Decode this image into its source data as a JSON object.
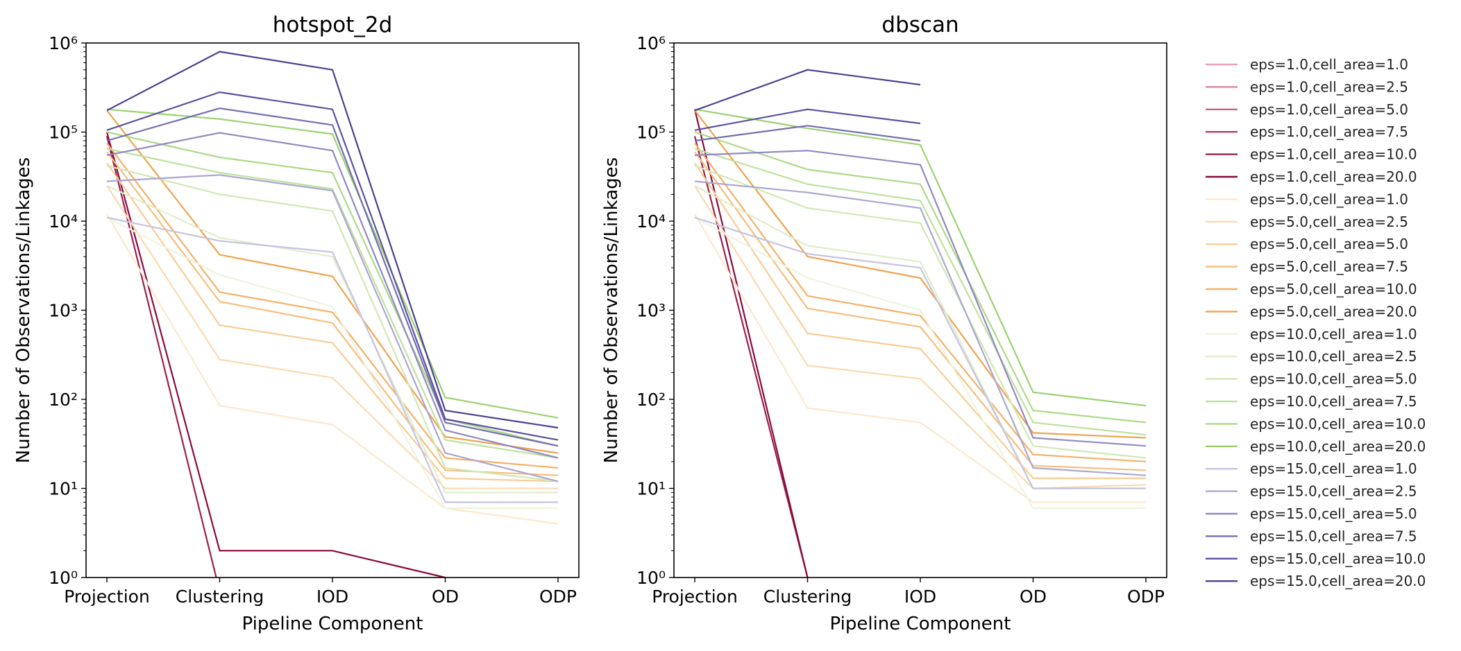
{
  "figure": {
    "legend_position": "right"
  },
  "chart_data": [
    {
      "type": "line",
      "title": "hotspot_2d",
      "xlabel": "Pipeline Component",
      "ylabel": "Number of Observations/Linkages",
      "yscale": "log",
      "ylim": [
        1,
        1000000
      ],
      "yticks": [
        1,
        10,
        100,
        1000,
        10000,
        100000,
        1000000
      ],
      "categories": [
        "Projection",
        "Clustering",
        "IOD",
        "OD",
        "ODP"
      ],
      "grid": false,
      "series": [
        {
          "name": "eps=1.0,cell_area=1.0",
          "color": "#e7a3b5",
          "values": [
            0,
            null,
            null,
            null,
            null
          ]
        },
        {
          "name": "eps=1.0,cell_area=2.5",
          "color": "#d9829c",
          "values": [
            0,
            null,
            null,
            null,
            null
          ]
        },
        {
          "name": "eps=1.0,cell_area=5.0",
          "color": "#c9617f",
          "values": [
            0,
            null,
            null,
            null,
            null
          ]
        },
        {
          "name": "eps=1.0,cell_area=7.5",
          "color": "#b13f65",
          "values": [
            0,
            null,
            null,
            null,
            null
          ]
        },
        {
          "name": "eps=1.0,cell_area=10.0",
          "color": "#9a1f4c",
          "values": [
            90000,
            0,
            null,
            null,
            null
          ]
        },
        {
          "name": "eps=1.0,cell_area=20.0",
          "color": "#88093d",
          "values": [
            100000,
            2,
            2,
            1,
            null
          ]
        },
        {
          "name": "eps=5.0,cell_area=1.0",
          "color": "#fde8cc",
          "values": [
            12000,
            85,
            52,
            6,
            4
          ]
        },
        {
          "name": "eps=5.0,cell_area=2.5",
          "color": "#fbdab0",
          "values": [
            25000,
            280,
            175,
            10,
            10
          ]
        },
        {
          "name": "eps=5.0,cell_area=5.0",
          "color": "#f9cc95",
          "values": [
            45000,
            680,
            430,
            13,
            12
          ]
        },
        {
          "name": "eps=5.0,cell_area=7.5",
          "color": "#f7be7c",
          "values": [
            60000,
            1250,
            720,
            16,
            14
          ]
        },
        {
          "name": "eps=5.0,cell_area=10.0",
          "color": "#f4b067",
          "values": [
            75000,
            1600,
            950,
            22,
            17
          ]
        },
        {
          "name": "eps=5.0,cell_area=20.0",
          "color": "#f1a24f",
          "values": [
            175000,
            4200,
            2400,
            38,
            25
          ]
        },
        {
          "name": "eps=10.0,cell_area=1.0",
          "color": "#edf4df",
          "values": [
            11000,
            2500,
            1100,
            6,
            6
          ]
        },
        {
          "name": "eps=10.0,cell_area=2.5",
          "color": "#e0eecb",
          "values": [
            25000,
            6500,
            4000,
            9,
            9
          ]
        },
        {
          "name": "eps=10.0,cell_area=5.0",
          "color": "#d0e8b4",
          "values": [
            42000,
            20000,
            13000,
            17,
            12
          ]
        },
        {
          "name": "eps=10.0,cell_area=7.5",
          "color": "#bfe19d",
          "values": [
            65000,
            35000,
            23000,
            35,
            22
          ]
        },
        {
          "name": "eps=10.0,cell_area=10.0",
          "color": "#acd986",
          "values": [
            100000,
            52000,
            35000,
            60,
            30
          ]
        },
        {
          "name": "eps=10.0,cell_area=20.0",
          "color": "#9ad16f",
          "values": [
            180000,
            140000,
            95000,
            105,
            62
          ]
        },
        {
          "name": "eps=15.0,cell_area=1.0",
          "color": "#c6c3e0",
          "values": [
            11000,
            6000,
            4500,
            7,
            7
          ]
        },
        {
          "name": "eps=15.0,cell_area=2.5",
          "color": "#aaa6d1",
          "values": [
            28000,
            33000,
            22000,
            25,
            12
          ]
        },
        {
          "name": "eps=15.0,cell_area=5.0",
          "color": "#8f89c1",
          "values": [
            55000,
            98000,
            62000,
            45,
            22
          ]
        },
        {
          "name": "eps=15.0,cell_area=7.5",
          "color": "#746db0",
          "values": [
            80000,
            185000,
            120000,
            55,
            30
          ]
        },
        {
          "name": "eps=15.0,cell_area=10.0",
          "color": "#5a519f",
          "values": [
            105000,
            280000,
            180000,
            60,
            35
          ]
        },
        {
          "name": "eps=15.0,cell_area=20.0",
          "color": "#4a3f90",
          "values": [
            175000,
            800000,
            500000,
            75,
            48
          ]
        }
      ]
    },
    {
      "type": "line",
      "title": "dbscan",
      "xlabel": "Pipeline Component",
      "ylabel": "Number of Observations/Linkages",
      "yscale": "log",
      "ylim": [
        1,
        1000000
      ],
      "yticks": [
        1,
        10,
        100,
        1000,
        10000,
        100000,
        1000000
      ],
      "categories": [
        "Projection",
        "Clustering",
        "IOD",
        "OD",
        "ODP"
      ],
      "grid": false,
      "series": [
        {
          "name": "eps=1.0,cell_area=1.0",
          "color": "#e7a3b5",
          "values": [
            0,
            null,
            null,
            null,
            null
          ]
        },
        {
          "name": "eps=1.0,cell_area=2.5",
          "color": "#d9829c",
          "values": [
            0,
            null,
            null,
            null,
            null
          ]
        },
        {
          "name": "eps=1.0,cell_area=5.0",
          "color": "#c9617f",
          "values": [
            0,
            null,
            null,
            null,
            null
          ]
        },
        {
          "name": "eps=1.0,cell_area=7.5",
          "color": "#b13f65",
          "values": [
            0,
            null,
            null,
            null,
            null
          ]
        },
        {
          "name": "eps=1.0,cell_area=10.0",
          "color": "#9a1f4c",
          "values": [
            90000,
            1,
            null,
            null,
            null
          ]
        },
        {
          "name": "eps=1.0,cell_area=20.0",
          "color": "#88093d",
          "values": [
            180000,
            1,
            null,
            null,
            null
          ]
        },
        {
          "name": "eps=5.0,cell_area=1.0",
          "color": "#fde8cc",
          "values": [
            12000,
            80,
            55,
            7,
            7
          ]
        },
        {
          "name": "eps=5.0,cell_area=2.5",
          "color": "#fbdab0",
          "values": [
            25000,
            240,
            170,
            10,
            11
          ]
        },
        {
          "name": "eps=5.0,cell_area=5.0",
          "color": "#f9cc95",
          "values": [
            45000,
            550,
            370,
            13,
            13
          ]
        },
        {
          "name": "eps=5.0,cell_area=7.5",
          "color": "#f7be7c",
          "values": [
            60000,
            1050,
            650,
            18,
            16
          ]
        },
        {
          "name": "eps=5.0,cell_area=10.0",
          "color": "#f4b067",
          "values": [
            75000,
            1450,
            870,
            24,
            20
          ]
        },
        {
          "name": "eps=5.0,cell_area=20.0",
          "color": "#f1a24f",
          "values": [
            175000,
            4000,
            2300,
            42,
            37
          ]
        },
        {
          "name": "eps=10.0,cell_area=1.0",
          "color": "#edf4df",
          "values": [
            11000,
            2300,
            1000,
            6,
            6
          ]
        },
        {
          "name": "eps=10.0,cell_area=2.5",
          "color": "#e0eecb",
          "values": [
            25000,
            5300,
            3500,
            10,
            10
          ]
        },
        {
          "name": "eps=10.0,cell_area=5.0",
          "color": "#d0e8b4",
          "values": [
            42000,
            14000,
            9500,
            30,
            22
          ]
        },
        {
          "name": "eps=10.0,cell_area=7.5",
          "color": "#bfe19d",
          "values": [
            65000,
            26000,
            17000,
            55,
            40
          ]
        },
        {
          "name": "eps=10.0,cell_area=10.0",
          "color": "#acd986",
          "values": [
            100000,
            38000,
            26000,
            75,
            55
          ]
        },
        {
          "name": "eps=10.0,cell_area=20.0",
          "color": "#9ad16f",
          "values": [
            180000,
            110000,
            72000,
            120,
            85
          ]
        },
        {
          "name": "eps=15.0,cell_area=1.0",
          "color": "#c6c3e0",
          "values": [
            11000,
            4300,
            3000,
            10,
            10
          ]
        },
        {
          "name": "eps=15.0,cell_area=2.5",
          "color": "#aaa6d1",
          "values": [
            28000,
            21000,
            14000,
            17,
            14
          ]
        },
        {
          "name": "eps=15.0,cell_area=5.0",
          "color": "#8f89c1",
          "values": [
            55000,
            62000,
            43000,
            37,
            30
          ]
        },
        {
          "name": "eps=15.0,cell_area=7.5",
          "color": "#746db0",
          "values": [
            80000,
            118000,
            80000,
            null,
            null
          ]
        },
        {
          "name": "eps=15.0,cell_area=10.0",
          "color": "#5a519f",
          "values": [
            105000,
            180000,
            125000,
            null,
            null
          ]
        },
        {
          "name": "eps=15.0,cell_area=20.0",
          "color": "#4a3f90",
          "values": [
            175000,
            500000,
            340000,
            null,
            null
          ]
        }
      ]
    }
  ]
}
